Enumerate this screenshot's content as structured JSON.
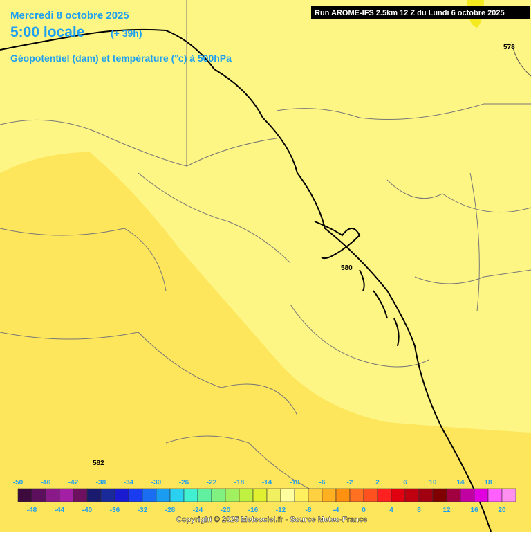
{
  "header": {
    "date": "Mercredi 8 octobre 2025",
    "time": "5:00 locale",
    "lead": "(+ 39h)",
    "field": "Géopotentiel (dam) et température (°c) à 500hPa",
    "run": "Run AROME-IFS 2.5km 12 Z du Lundi 6 octobre 2025"
  },
  "contour_labels": [
    "578",
    "580",
    "582"
  ],
  "scale": {
    "values": [
      -50,
      -48,
      -46,
      -44,
      -42,
      -40,
      -38,
      -36,
      -34,
      -32,
      -30,
      -28,
      -26,
      -24,
      -22,
      -20,
      -18,
      -16,
      -14,
      -12,
      -10,
      -8,
      -6,
      -4,
      -2,
      0,
      2,
      4,
      6,
      8,
      10,
      12,
      14,
      16,
      18,
      20
    ],
    "colors": [
      "#3c0a3c",
      "#5c0f5c",
      "#8a1a8a",
      "#a31fa3",
      "#6e1060",
      "#1a1a6e",
      "#1a2a9a",
      "#1a1ad0",
      "#1a3cf0",
      "#1a6cf0",
      "#1a9cf0",
      "#2ad0f0",
      "#40f0d0",
      "#60f0a0",
      "#80f080",
      "#a0f060",
      "#c0f040",
      "#e0f030",
      "#f0f060",
      "#ffffa0",
      "#fff060",
      "#ffd040",
      "#ffb020",
      "#ff9010",
      "#ff7020",
      "#ff5020",
      "#ff2020",
      "#e00010",
      "#c00010",
      "#a00010",
      "#800000",
      "#a00040",
      "#c000a0",
      "#e000e0",
      "#ff60ff",
      "#ff90f0"
    ]
  },
  "copyright": "Copyright © 2025 Meteociel.fr - Source Meteo-France"
}
